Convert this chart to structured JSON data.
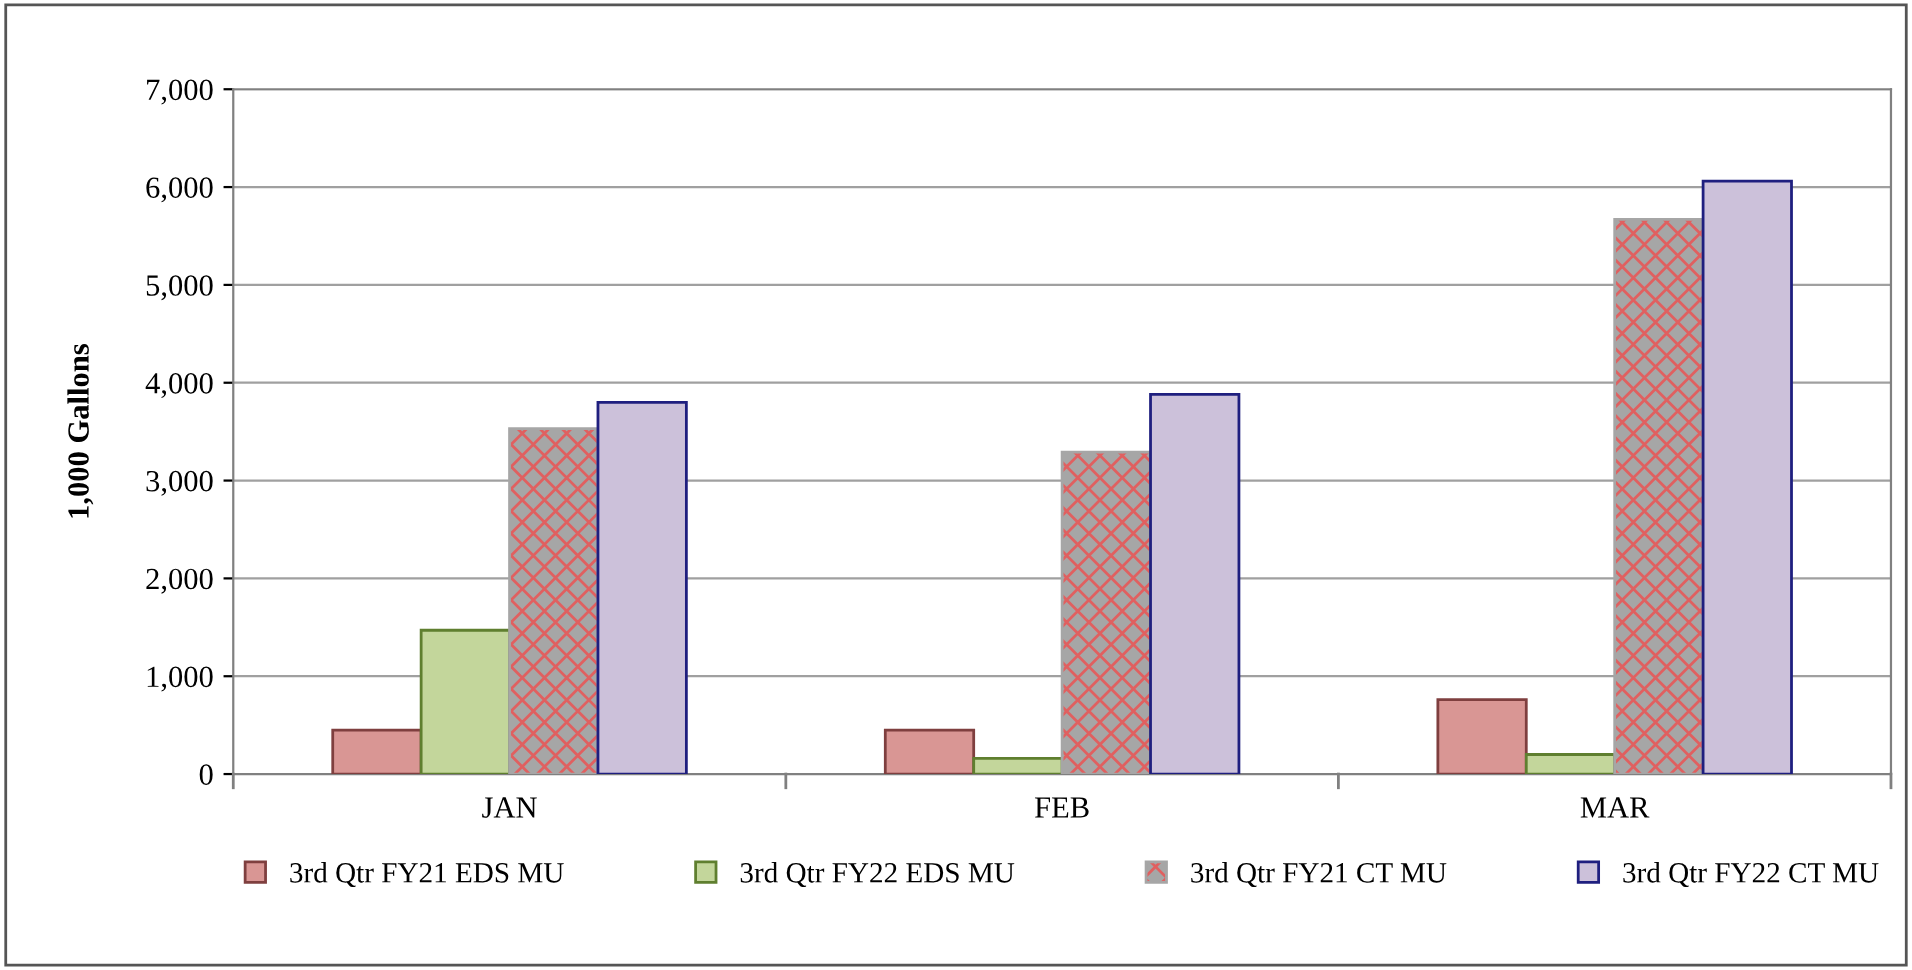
{
  "chart_data": {
    "type": "bar",
    "ylabel": "1,000 Gallons",
    "categories": [
      "JAN",
      "FEB",
      "MAR"
    ],
    "series": [
      {
        "name": "3rd Qtr FY21 EDS MU",
        "color": "#d99694",
        "values": [
          450,
          450,
          760
        ]
      },
      {
        "name": "3rd Qtr FY22 EDS MU",
        "color": "#c3d69b",
        "values": [
          1470,
          160,
          200
        ]
      },
      {
        "name": "3rd Qtr FY21 CT MU",
        "color": "#a6a6a6",
        "values": [
          3530,
          3290,
          5670
        ]
      },
      {
        "name": "3rd Qtr FY22 CT MU",
        "color": "#ccc1da",
        "values": [
          3800,
          3880,
          6060
        ]
      }
    ],
    "ylim": [
      0,
      7000
    ],
    "yticks": [
      {
        "value": 0,
        "label": "0"
      },
      {
        "value": 1000,
        "label": "1,000"
      },
      {
        "value": 2000,
        "label": "2,000"
      },
      {
        "value": 3000,
        "label": "3,000"
      },
      {
        "value": 4000,
        "label": "4,000"
      },
      {
        "value": 5000,
        "label": "5,000"
      },
      {
        "value": 6000,
        "label": "6,000"
      },
      {
        "value": 7000,
        "label": "7,000"
      }
    ],
    "grid": "y",
    "legend": "bottom"
  }
}
